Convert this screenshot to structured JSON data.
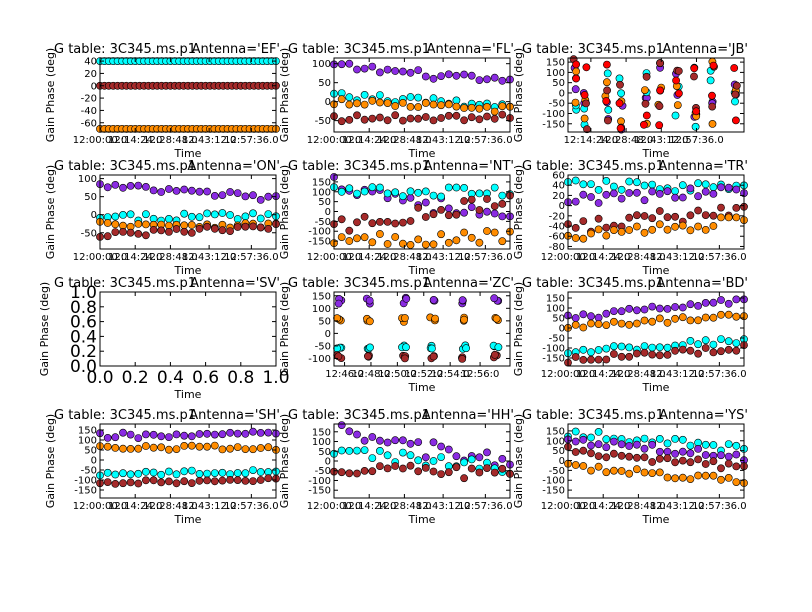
{
  "figure": {
    "background": "#ffffff",
    "series_colors": {
      "cyan": "#00ffff",
      "purple": "#8a2be2",
      "orange": "#ff8c00",
      "brown": "#a52a2a",
      "red": "#ff0000",
      "yellow": "#ffff00",
      "teal": "#008080"
    }
  },
  "chart_data": [
    {
      "type": "scatter",
      "title_left": "G table: 3C345.ms.p1",
      "title_right": "Antenna='EF'",
      "xlabel": "Time",
      "ylabel": "Gain Phase (deg)",
      "ylim": [
        -75,
        45
      ],
      "yticks": [
        -60,
        -40,
        -20,
        0,
        20,
        40
      ],
      "xlim": [
        0,
        1
      ],
      "xticks": [
        0.0,
        0.2,
        0.4,
        0.62,
        0.86
      ],
      "xticklabels": [
        "12:00:00.0",
        "12:14:24.0",
        "12:28:48.0",
        "12:43:12.0",
        "12:57:36.0"
      ],
      "pattern": "const",
      "series": [
        {
          "color": "cyan",
          "y": 40,
          "noise": 0
        },
        {
          "color": "brown",
          "y": 0,
          "noise": 0
        },
        {
          "color": "orange",
          "y": -70,
          "noise": 0
        }
      ]
    },
    {
      "type": "scatter",
      "title_left": "G table: 3C345.ms.p1",
      "title_right": "Antenna='FL'",
      "xlabel": "Time",
      "ylabel": "Gain Phase (deg)",
      "ylim": [
        -80,
        115
      ],
      "yticks": [
        -50,
        0,
        50,
        100
      ],
      "xlim": [
        0,
        1
      ],
      "xticks": [
        0.0,
        0.2,
        0.4,
        0.62,
        0.86
      ],
      "xticklabels": [
        "12:00:00.0",
        "12:14:24.0",
        "12:28:48.0",
        "12:43:12.0",
        "12:57:36.0"
      ],
      "pattern": "trend",
      "series": [
        {
          "color": "purple",
          "y0": 95,
          "y1": 50,
          "noise": 10
        },
        {
          "color": "cyan",
          "y0": 15,
          "y1": -10,
          "noise": 10
        },
        {
          "color": "orange",
          "y0": 0,
          "y1": -20,
          "noise": 8
        },
        {
          "color": "brown",
          "y0": -45,
          "y1": -40,
          "noise": 10
        }
      ]
    },
    {
      "type": "scatter",
      "title_left": "G table: 3C345.ms.p1",
      "title_right": "Antenna='JB'",
      "xlabel": "Time",
      "ylabel": "Gain Phase (deg)",
      "ylim": [
        -190,
        170
      ],
      "yticks": [
        -150,
        -100,
        -50,
        0,
        50,
        100,
        150
      ],
      "xlim": [
        0,
        1
      ],
      "xticks": [
        0.13,
        0.33,
        0.53,
        0.73
      ],
      "xticklabels": [
        "12:14:24.0",
        "12:28:48.0",
        "12:43:12.0",
        "12:57:36.0"
      ],
      "pattern": "scatter",
      "series": [
        {
          "color": "purple",
          "noise": 0
        },
        {
          "color": "cyan",
          "noise": 0
        },
        {
          "color": "orange",
          "noise": 0
        },
        {
          "color": "brown",
          "noise": 0
        },
        {
          "color": "red",
          "noise": 0
        }
      ]
    },
    {
      "type": "scatter",
      "title_left": "G table: 3C345.ms.p1",
      "title_right": "Antenna='ON'",
      "xlabel": "Time",
      "ylabel": "Gain Phase (deg)",
      "ylim": [
        -95,
        110
      ],
      "yticks": [
        -50,
        0,
        50,
        100
      ],
      "xlim": [
        0,
        1
      ],
      "xticks": [
        0.0,
        0.2,
        0.4,
        0.62,
        0.86
      ],
      "xticklabels": [
        "12:00:00.0",
        "12:14:24.0",
        "12:28:48.0",
        "12:43:12.0",
        "12:57:36.0"
      ],
      "pattern": "trend",
      "series": [
        {
          "color": "purple",
          "y0": 80,
          "y1": 45,
          "noise": 10
        },
        {
          "color": "cyan",
          "y0": -10,
          "y1": 0,
          "noise": 10
        },
        {
          "color": "orange",
          "y0": -25,
          "y1": -30,
          "noise": 8
        },
        {
          "color": "brown",
          "y0": -55,
          "y1": -35,
          "noise": 10
        }
      ]
    },
    {
      "type": "scatter",
      "title_left": "G table: 3C345.ms.p1",
      "title_right": "Antenna='NT'",
      "xlabel": "Time",
      "ylabel": "Gain Phase (deg)",
      "ylim": [
        -190,
        185
      ],
      "yticks": [
        -150,
        -100,
        -50,
        0,
        50,
        100,
        150
      ],
      "xlim": [
        0,
        1
      ],
      "xticks": [
        0.0,
        0.2,
        0.4,
        0.62,
        0.86
      ],
      "xticklabels": [
        "12:00:00.0",
        "12:14:24.0",
        "12:28:48.0",
        "12:43:12.0",
        "12:57:36.0"
      ],
      "pattern": "trend",
      "series": [
        {
          "color": "purple",
          "y0": 150,
          "y1": -50,
          "noise": 45
        },
        {
          "color": "cyan",
          "y0": 100,
          "y1": 100,
          "noise": 25
        },
        {
          "color": "brown",
          "y0": -80,
          "y1": 60,
          "noise": 35
        },
        {
          "color": "orange",
          "y0": -150,
          "y1": -120,
          "noise": 35
        }
      ]
    },
    {
      "type": "scatter",
      "title_left": "G table: 3C345.ms.p1",
      "title_right": "Antenna='TR'",
      "xlabel": "Time",
      "ylabel": "Gain Phase (deg)",
      "ylim": [
        -85,
        60
      ],
      "yticks": [
        -80,
        -60,
        -40,
        -20,
        0,
        20,
        40,
        60
      ],
      "xlim": [
        0,
        1
      ],
      "xticks": [
        0.0,
        0.2,
        0.4,
        0.62,
        0.86
      ],
      "xticklabels": [
        "12:00:00.0",
        "12:14:24.0",
        "12:28:48.0",
        "12:43:12.0",
        "12:57:36.0"
      ],
      "pattern": "trend",
      "series": [
        {
          "color": "cyan",
          "y0": 40,
          "y1": 35,
          "noise": 10
        },
        {
          "color": "purple",
          "y0": 10,
          "y1": 30,
          "noise": 10
        },
        {
          "color": "brown",
          "y0": -40,
          "y1": -10,
          "noise": 15
        },
        {
          "color": "orange",
          "y0": -60,
          "y1": -30,
          "noise": 12
        }
      ]
    },
    {
      "type": "scatter",
      "empty": true,
      "title_left": "G table: 3C345.ms.p1",
      "title_right": "Antenna='SV'",
      "xlabel": "Time",
      "ylabel": "Gain Phase (deg)",
      "ylim": [
        0,
        1
      ],
      "yticks": [
        0.0,
        0.2,
        0.4,
        0.6,
        0.8,
        1.0
      ],
      "yticklabels": [
        "0.0",
        "0.2",
        "0.4",
        "0.6",
        "0.8",
        "1.0"
      ],
      "xlim": [
        0,
        1
      ],
      "xticks": [
        0.0,
        0.2,
        0.4,
        0.6,
        0.8,
        1.0
      ],
      "xticklabels": [
        "0.0",
        "0.2",
        "0.4",
        "0.6",
        "0.8",
        "1.0"
      ],
      "series": []
    },
    {
      "type": "scatter",
      "title_left": "G table: 3C345.ms.p1",
      "title_right": "Antenna='ZC'",
      "xlabel": "Time",
      "ylabel": "Gain Phase (deg)",
      "ylim": [
        -130,
        165
      ],
      "yticks": [
        -100,
        -50,
        0,
        50,
        100,
        150
      ],
      "xlim": [
        0,
        1
      ],
      "xticks": [
        0.06,
        0.21,
        0.36,
        0.51,
        0.66,
        0.83
      ],
      "xticklabels": [
        "12:46:0",
        "12:48:0",
        "12:50:0",
        "12:52:0",
        "12:54:0",
        "12:56:0"
      ],
      "pattern": "cluster",
      "series": [
        {
          "color": "purple",
          "y": 130,
          "noise": 12
        },
        {
          "color": "orange",
          "y": 55,
          "noise": 10
        },
        {
          "color": "cyan",
          "y": -55,
          "noise": 8
        },
        {
          "color": "brown",
          "y": -95,
          "noise": 10
        }
      ]
    },
    {
      "type": "scatter",
      "title_left": "G table: 3C345.ms.p1",
      "title_right": "Antenna='BD'",
      "xlabel": "Time",
      "ylabel": "Gain Phase (deg)",
      "ylim": [
        -190,
        180
      ],
      "yticks": [
        -150,
        -100,
        -50,
        0,
        50,
        100,
        150
      ],
      "xlim": [
        0,
        1
      ],
      "xticks": [
        0.0,
        0.2,
        0.4,
        0.62,
        0.86
      ],
      "xticklabels": [
        "12:00:00.0",
        "12:14:24.0",
        "12:28:48.0",
        "12:43:12.0",
        "12:57:36.0"
      ],
      "pattern": "trend",
      "series": [
        {
          "color": "purple",
          "y0": 50,
          "y1": 140,
          "noise": 15
        },
        {
          "color": "orange",
          "y0": 0,
          "y1": 70,
          "noise": 15
        },
        {
          "color": "cyan",
          "y0": -120,
          "y1": -60,
          "noise": 15
        },
        {
          "color": "brown",
          "y0": -160,
          "y1": -100,
          "noise": 15
        }
      ]
    },
    {
      "type": "scatter",
      "title_left": "G table: 3C345.ms.p1",
      "title_right": "Antenna='SH'",
      "xlabel": "Time",
      "ylabel": "Gain Phase (deg)",
      "ylim": [
        -190,
        180
      ],
      "yticks": [
        -150,
        -100,
        -50,
        0,
        50,
        100,
        150
      ],
      "xlim": [
        0,
        1
      ],
      "xticks": [
        0.0,
        0.2,
        0.4,
        0.62,
        0.86
      ],
      "xticklabels": [
        "12:00:00.0",
        "12:14:24.0",
        "12:28:48.0",
        "12:43:12.0",
        "12:57:36.0"
      ],
      "pattern": "trend",
      "series": [
        {
          "color": "purple",
          "y0": 120,
          "y1": 130,
          "noise": 15
        },
        {
          "color": "orange",
          "y0": 60,
          "y1": 60,
          "noise": 12
        },
        {
          "color": "cyan",
          "y0": -70,
          "y1": -60,
          "noise": 12
        },
        {
          "color": "brown",
          "y0": -110,
          "y1": -100,
          "noise": 12
        }
      ]
    },
    {
      "type": "scatter",
      "title_left": "G table: 3C345.ms.p1",
      "title_right": "Antenna='HH'",
      "xlabel": "Time",
      "ylabel": "Gain Phase (deg)",
      "ylim": [
        -190,
        190
      ],
      "yticks": [
        -150,
        -100,
        -50,
        0,
        50,
        100,
        150
      ],
      "xlim": [
        0,
        1
      ],
      "xticks": [
        0.0,
        0.2,
        0.4,
        0.62,
        0.86
      ],
      "xticklabels": [
        "12:00:00.0",
        "12:14:24.0",
        "12:28:48.0",
        "12:43:12.0",
        "12:57:36.0"
      ],
      "pattern": "trend",
      "series": [
        {
          "color": "purple",
          "y0": 150,
          "y1": -20,
          "noise": 45
        },
        {
          "color": "cyan",
          "y0": 50,
          "y1": -40,
          "noise": 30
        },
        {
          "color": "brown",
          "y0": -30,
          "y1": -70,
          "noise": 30
        }
      ]
    },
    {
      "type": "scatter",
      "title_left": "G table: 3C345.ms.p1",
      "title_right": "Antenna='YS'",
      "xlabel": "Time",
      "ylabel": "Gain Phase (deg)",
      "ylim": [
        -190,
        185
      ],
      "yticks": [
        -150,
        -100,
        -50,
        0,
        50,
        100,
        150
      ],
      "xlim": [
        0,
        1
      ],
      "xticks": [
        0.0,
        0.2,
        0.4,
        0.62,
        0.86
      ],
      "xticklabels": [
        "12:00:00.0",
        "12:14:24.0",
        "12:28:48.0",
        "12:43:12.0",
        "12:57:36.0"
      ],
      "pattern": "trend",
      "series": [
        {
          "color": "cyan",
          "y0": 140,
          "y1": 60,
          "noise": 20
        },
        {
          "color": "purple",
          "y0": 100,
          "y1": 20,
          "noise": 20
        },
        {
          "color": "brown",
          "y0": 50,
          "y1": -30,
          "noise": 20
        },
        {
          "color": "orange",
          "y0": -20,
          "y1": -110,
          "noise": 20
        }
      ]
    }
  ]
}
